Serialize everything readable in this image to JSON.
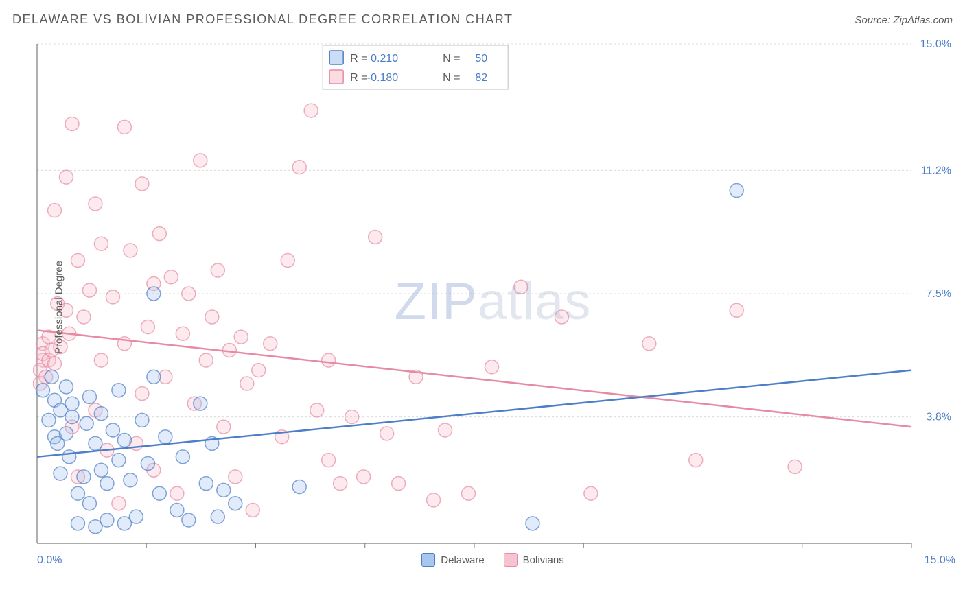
{
  "header": {
    "title": "DELAWARE VS BOLIVIAN PROFESSIONAL DEGREE CORRELATION CHART",
    "source": "Source: ZipAtlas.com"
  },
  "chart": {
    "type": "scatter",
    "y_axis_label": "Professional Degree",
    "xlim": [
      0,
      15
    ],
    "ylim": [
      0,
      15
    ],
    "x_tick_left_label": "0.0%",
    "x_tick_right_label": "15.0%",
    "y_ticks": [
      3.8,
      7.5,
      11.2,
      15.0
    ],
    "y_tick_labels": [
      "3.8%",
      "7.5%",
      "11.2%",
      "15.0%"
    ],
    "x_ticks_minor": [
      1.875,
      3.75,
      5.625,
      7.5,
      9.375,
      11.25,
      13.125,
      15.0
    ],
    "grid_color": "#dcdcdc",
    "axis_color": "#7a7a7a",
    "background_color": "#ffffff",
    "marker_radius": 10,
    "marker_fill_opacity": 0.35,
    "marker_stroke_width": 1.5,
    "line_width": 2.5,
    "watermark_text_1": "ZIP",
    "watermark_text_2": "atlas",
    "series": {
      "delaware": {
        "label": "Delaware",
        "color": "#4d7ec8",
        "fill_color": "#a9c6ed",
        "r_value": "0.210",
        "n_value": "50",
        "trend": {
          "y_at_x0": 2.6,
          "y_at_x15": 5.2
        },
        "points": [
          [
            0.1,
            4.6
          ],
          [
            0.2,
            3.7
          ],
          [
            0.25,
            5.0
          ],
          [
            0.3,
            3.2
          ],
          [
            0.3,
            4.3
          ],
          [
            0.35,
            3.0
          ],
          [
            0.4,
            4.0
          ],
          [
            0.4,
            2.1
          ],
          [
            0.5,
            3.3
          ],
          [
            0.5,
            4.7
          ],
          [
            0.55,
            2.6
          ],
          [
            0.6,
            3.8
          ],
          [
            0.6,
            4.2
          ],
          [
            0.7,
            1.5
          ],
          [
            0.7,
            0.6
          ],
          [
            0.8,
            2.0
          ],
          [
            0.85,
            3.6
          ],
          [
            0.9,
            4.4
          ],
          [
            0.9,
            1.2
          ],
          [
            1.0,
            0.5
          ],
          [
            1.0,
            3.0
          ],
          [
            1.1,
            2.2
          ],
          [
            1.1,
            3.9
          ],
          [
            1.2,
            1.8
          ],
          [
            1.2,
            0.7
          ],
          [
            1.3,
            3.4
          ],
          [
            1.4,
            4.6
          ],
          [
            1.4,
            2.5
          ],
          [
            1.5,
            0.6
          ],
          [
            1.5,
            3.1
          ],
          [
            1.6,
            1.9
          ],
          [
            1.7,
            0.8
          ],
          [
            1.8,
            3.7
          ],
          [
            1.9,
            2.4
          ],
          [
            2.0,
            5.0
          ],
          [
            2.0,
            7.5
          ],
          [
            2.1,
            1.5
          ],
          [
            2.2,
            3.2
          ],
          [
            2.4,
            1.0
          ],
          [
            2.5,
            2.6
          ],
          [
            2.6,
            0.7
          ],
          [
            2.8,
            4.2
          ],
          [
            2.9,
            1.8
          ],
          [
            3.0,
            3.0
          ],
          [
            3.1,
            0.8
          ],
          [
            3.2,
            1.6
          ],
          [
            3.4,
            1.2
          ],
          [
            4.5,
            1.7
          ],
          [
            8.5,
            0.6
          ],
          [
            12.0,
            10.6
          ]
        ]
      },
      "bolivians": {
        "label": "Bolivians",
        "color": "#e68ba3",
        "fill_color": "#f6c4d0",
        "r_value": "-0.180",
        "n_value": "82",
        "trend": {
          "y_at_x0": 6.4,
          "y_at_x15": 3.5
        },
        "points": [
          [
            0.1,
            5.5
          ],
          [
            0.1,
            6.0
          ],
          [
            0.1,
            5.7
          ],
          [
            0.2,
            5.5
          ],
          [
            0.2,
            6.2
          ],
          [
            0.25,
            5.8
          ],
          [
            0.3,
            10.0
          ],
          [
            0.3,
            5.4
          ],
          [
            0.35,
            7.2
          ],
          [
            0.4,
            5.9
          ],
          [
            0.5,
            11.0
          ],
          [
            0.5,
            7.0
          ],
          [
            0.55,
            6.3
          ],
          [
            0.6,
            12.6
          ],
          [
            0.6,
            3.5
          ],
          [
            0.7,
            8.5
          ],
          [
            0.7,
            2.0
          ],
          [
            0.8,
            6.8
          ],
          [
            0.9,
            7.6
          ],
          [
            1.0,
            4.0
          ],
          [
            1.0,
            10.2
          ],
          [
            1.1,
            9.0
          ],
          [
            1.1,
            5.5
          ],
          [
            1.2,
            2.8
          ],
          [
            1.3,
            7.4
          ],
          [
            1.4,
            1.2
          ],
          [
            1.5,
            12.5
          ],
          [
            1.5,
            6.0
          ],
          [
            1.6,
            8.8
          ],
          [
            1.7,
            3.0
          ],
          [
            1.8,
            10.8
          ],
          [
            1.8,
            4.5
          ],
          [
            1.9,
            6.5
          ],
          [
            2.0,
            7.8
          ],
          [
            2.0,
            2.2
          ],
          [
            2.1,
            9.3
          ],
          [
            2.2,
            5.0
          ],
          [
            2.3,
            8.0
          ],
          [
            2.4,
            1.5
          ],
          [
            2.5,
            6.3
          ],
          [
            2.6,
            7.5
          ],
          [
            2.7,
            4.2
          ],
          [
            2.8,
            11.5
          ],
          [
            2.9,
            5.5
          ],
          [
            3.0,
            6.8
          ],
          [
            3.1,
            8.2
          ],
          [
            3.2,
            3.5
          ],
          [
            3.3,
            5.8
          ],
          [
            3.4,
            2.0
          ],
          [
            3.5,
            6.2
          ],
          [
            3.6,
            4.8
          ],
          [
            3.7,
            1.0
          ],
          [
            3.8,
            5.2
          ],
          [
            4.0,
            6.0
          ],
          [
            4.2,
            3.2
          ],
          [
            4.3,
            8.5
          ],
          [
            4.5,
            11.3
          ],
          [
            4.7,
            13.0
          ],
          [
            4.8,
            4.0
          ],
          [
            5.0,
            2.5
          ],
          [
            5.0,
            5.5
          ],
          [
            5.2,
            1.8
          ],
          [
            5.4,
            3.8
          ],
          [
            5.6,
            2.0
          ],
          [
            5.8,
            9.2
          ],
          [
            6.0,
            3.3
          ],
          [
            6.2,
            1.8
          ],
          [
            6.5,
            5.0
          ],
          [
            6.8,
            1.3
          ],
          [
            7.0,
            3.4
          ],
          [
            7.4,
            1.5
          ],
          [
            7.8,
            5.3
          ],
          [
            8.3,
            7.7
          ],
          [
            9.0,
            6.8
          ],
          [
            9.5,
            1.5
          ],
          [
            10.5,
            6.0
          ],
          [
            11.3,
            2.5
          ],
          [
            12.0,
            7.0
          ],
          [
            13.0,
            2.3
          ],
          [
            0.05,
            5.2
          ],
          [
            0.15,
            5.0
          ],
          [
            0.05,
            4.8
          ]
        ]
      }
    },
    "legend_box": {
      "r_label": "R =",
      "n_label": "N ="
    },
    "bottom_legend": {
      "item1": "Delaware",
      "item2": "Bolivians"
    }
  }
}
